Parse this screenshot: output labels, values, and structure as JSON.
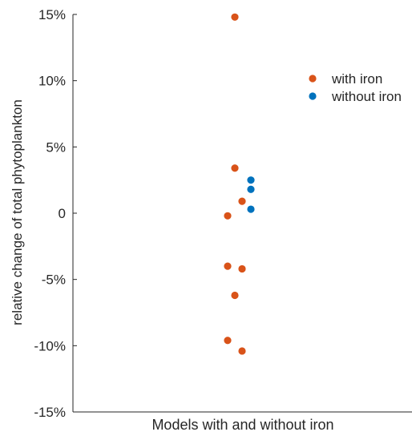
{
  "chart_data": {
    "type": "scatter",
    "title": "",
    "xlabel": "Models with and without iron",
    "ylabel": "relative change of total phytoplankton",
    "ylim": [
      -15,
      15
    ],
    "y_ticks": [
      -15,
      -10,
      -5,
      0,
      5,
      10,
      15
    ],
    "y_tick_labels": [
      "-15%",
      "-10%",
      "-5%",
      "0",
      "5%",
      "10%",
      "15%"
    ],
    "grid": false,
    "legend": "top-right",
    "series": [
      {
        "name": "with iron",
        "color": "#D95319",
        "values": [
          14.8,
          3.4,
          0.9,
          -0.2,
          -4.0,
          -4.2,
          -6.2,
          -9.6,
          -10.4
        ]
      },
      {
        "name": "without iron",
        "color": "#0072BD",
        "values": [
          2.5,
          1.8,
          0.3
        ]
      }
    ]
  }
}
